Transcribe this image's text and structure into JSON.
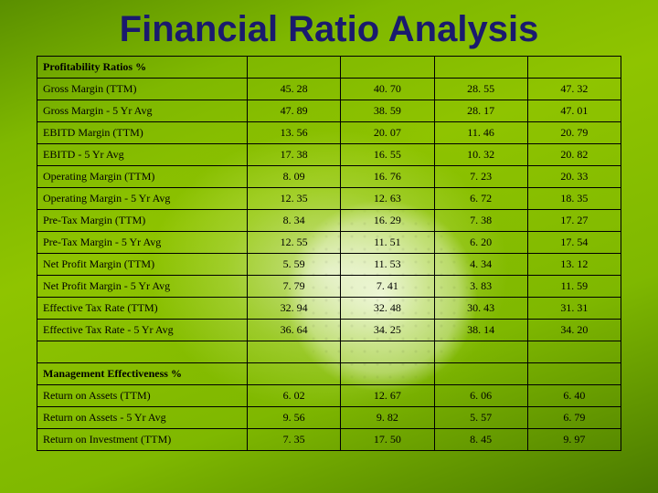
{
  "title": "Financial Ratio Analysis",
  "title_color": "#1a1a6e",
  "title_fontsize": 40,
  "cell_fontsize": 12,
  "border_color": "#000000",
  "background_gradient": [
    "#5a8f00",
    "#7fb800",
    "#8fc400",
    "#4a7a00"
  ],
  "column_count": 5,
  "column_widths_pct": [
    36,
    16,
    16,
    16,
    16
  ],
  "sections": [
    {
      "header": "Profitability Ratios %",
      "rows": [
        {
          "label": "Gross Margin (TTM)",
          "values": [
            "45. 28",
            "40. 70",
            "28. 55",
            "47. 32"
          ]
        },
        {
          "label": "Gross Margin - 5 Yr Avg",
          "values": [
            "47. 89",
            "38. 59",
            "28. 17",
            "47. 01"
          ]
        },
        {
          "label": "EBITD Margin (TTM)",
          "values": [
            "13. 56",
            "20. 07",
            "11. 46",
            "20. 79"
          ]
        },
        {
          "label": "EBITD - 5 Yr Avg",
          "values": [
            "17. 38",
            "16. 55",
            "10. 32",
            "20. 82"
          ]
        },
        {
          "label": "Operating Margin (TTM)",
          "values": [
            "8. 09",
            "16. 76",
            "7. 23",
            "20. 33"
          ]
        },
        {
          "label": "Operating Margin - 5 Yr Avg",
          "values": [
            "12. 35",
            "12. 63",
            "6. 72",
            "18. 35"
          ]
        },
        {
          "label": "Pre-Tax Margin (TTM)",
          "values": [
            "8. 34",
            "16. 29",
            "7. 38",
            "17. 27"
          ]
        },
        {
          "label": "Pre-Tax Margin - 5 Yr Avg",
          "values": [
            "12. 55",
            "11. 51",
            "6. 20",
            "17. 54"
          ]
        },
        {
          "label": "Net Profit Margin (TTM)",
          "values": [
            "5. 59",
            "11. 53",
            "4. 34",
            "13. 12"
          ]
        },
        {
          "label": "Net Profit Margin - 5 Yr Avg",
          "values": [
            "7. 79",
            "7. 41",
            "3. 83",
            "11. 59"
          ]
        },
        {
          "label": "Effective Tax Rate (TTM)",
          "values": [
            "32. 94",
            "32. 48",
            "30. 43",
            "31. 31"
          ]
        },
        {
          "label": "Effective Tax Rate - 5 Yr Avg",
          "values": [
            "36. 64",
            "34. 25",
            "38. 14",
            "34. 20"
          ]
        }
      ]
    },
    {
      "header": "Management Effectiveness %",
      "rows": [
        {
          "label": "Return on Assets (TTM)",
          "values": [
            "6. 02",
            "12. 67",
            "6. 06",
            "6. 40"
          ]
        },
        {
          "label": "Return on Assets - 5 Yr Avg",
          "values": [
            "9. 56",
            "9. 82",
            "5. 57",
            "6. 79"
          ]
        },
        {
          "label": "Return on Investment (TTM)",
          "values": [
            "7. 35",
            "17. 50",
            "8. 45",
            "9. 97"
          ]
        }
      ]
    }
  ]
}
